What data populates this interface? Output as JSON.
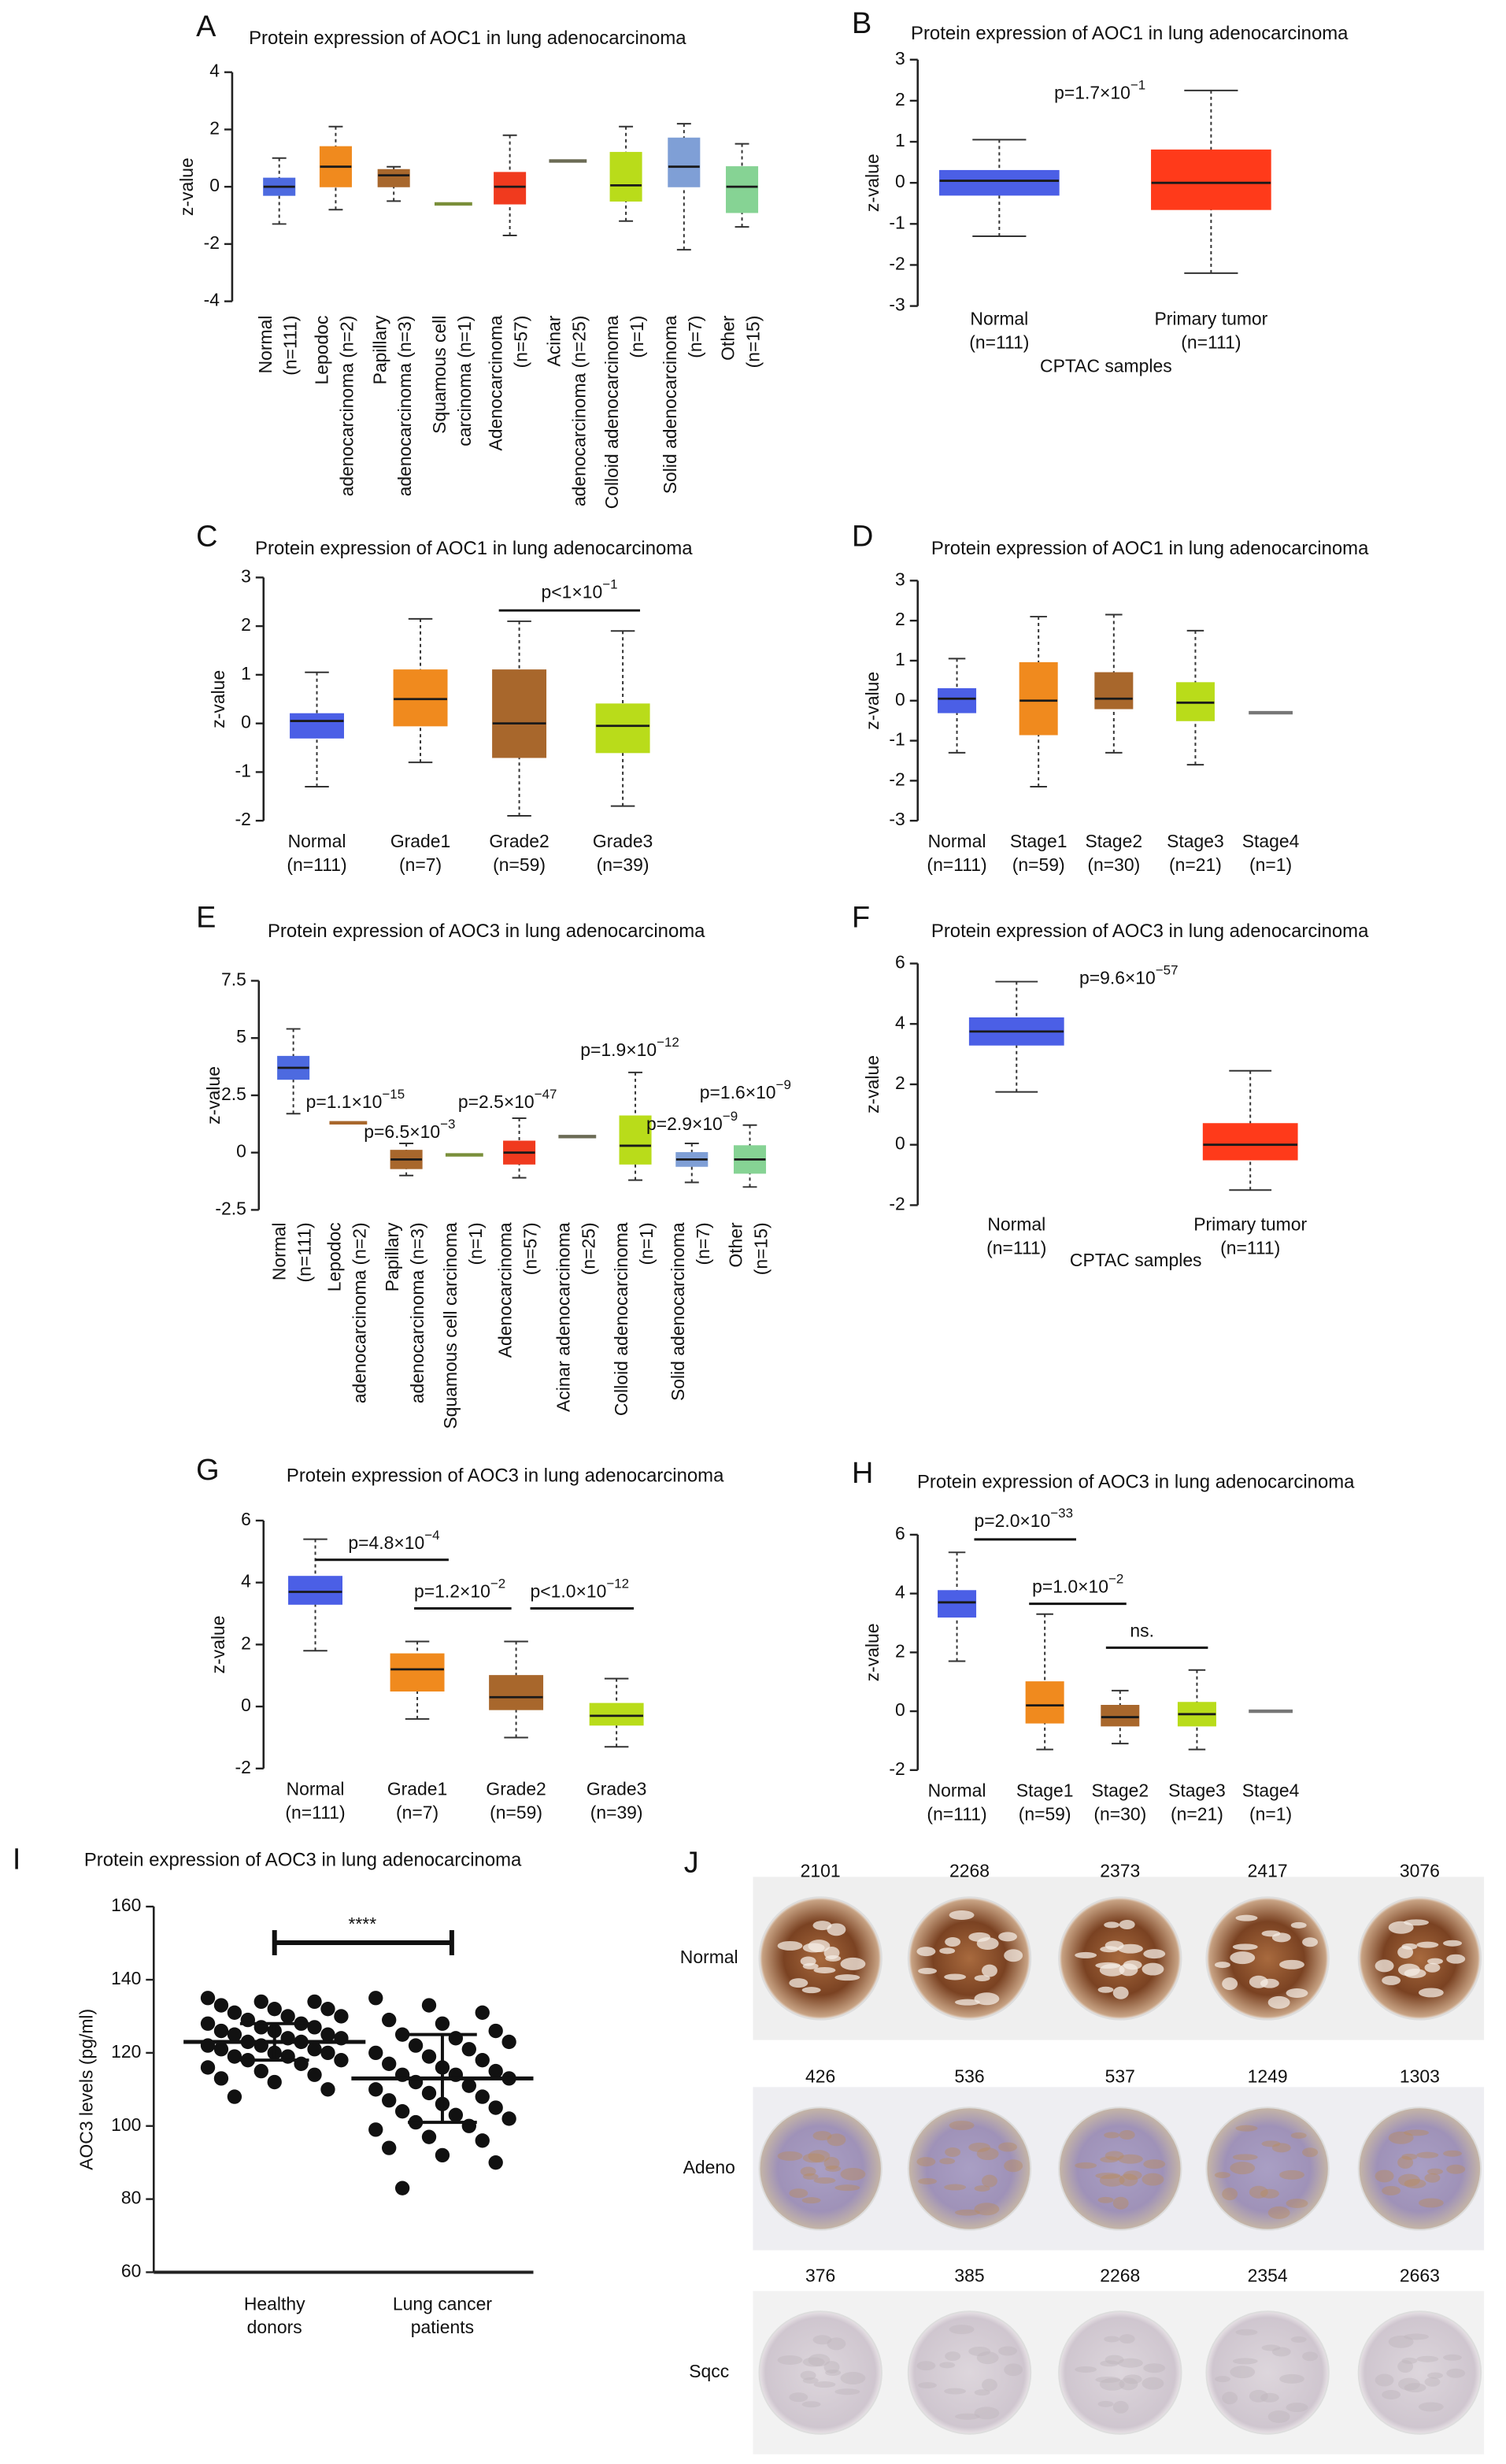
{
  "chart_data": [
    {
      "type": "box",
      "panel": "A",
      "title": "Protein expression of AOC1 in lung adenocarcinoma",
      "ylabel": "z-value",
      "ylim": [
        -4,
        4
      ],
      "yticks": [
        -4,
        -2,
        0,
        2,
        4
      ],
      "categories": [
        [
          "Normal",
          "(n=111)"
        ],
        [
          "Lepodoc",
          "adenocarcinoma (n=2)"
        ],
        [
          "Papillary",
          "adenocarcinoma (n=3)"
        ],
        [
          "Squamous cell",
          "carcinoma (n=1)"
        ],
        [
          "Adenocarcinoma",
          "(n=57)"
        ],
        [
          "Acinar",
          "adenocarcinoma (n=25)"
        ],
        [
          "Colloid adenocarcinoma",
          "(n=1)"
        ],
        [
          "Solid adenocarcinoma",
          "(n=7)"
        ],
        [
          "Other",
          "(n=15)"
        ]
      ],
      "colors": [
        "#4d6ae0",
        "#f08a1e",
        "#a8672c",
        "#7a8f3a",
        "#f03a1e",
        "#6b6b55",
        "#b9dc1a",
        "#7f9fd6",
        "#86d394"
      ],
      "boxes": [
        {
          "low": -1.3,
          "q1": -0.3,
          "median": 0,
          "q3": 0.3,
          "high": 1.0
        },
        {
          "low": -0.8,
          "q1": 0,
          "median": 0.7,
          "q3": 1.4,
          "high": 2.1
        },
        {
          "low": -0.5,
          "q1": 0,
          "median": 0.4,
          "q3": 0.6,
          "high": 0.7
        },
        {
          "median": -0.6
        },
        {
          "low": -1.7,
          "q1": -0.6,
          "median": 0,
          "q3": 0.5,
          "high": 1.8
        },
        {
          "median": 0.9
        },
        {
          "low": -1.2,
          "q1": -0.5,
          "median": 0.05,
          "q3": 1.2,
          "high": 2.1
        },
        {
          "low": -2.2,
          "q1": 0,
          "median": 0.7,
          "q3": 1.7,
          "high": 2.2
        },
        {
          "low": -1.4,
          "q1": -0.9,
          "median": 0,
          "q3": 0.7,
          "high": 1.5
        }
      ]
    },
    {
      "type": "box",
      "panel": "B",
      "title": "Protein expression of AOC1 in lung adenocarcinoma",
      "ylabel": "z-value",
      "xlabel": "CPTAC samples",
      "ylim": [
        -3,
        3
      ],
      "yticks": [
        -3,
        -2,
        -1,
        0,
        1,
        2,
        3
      ],
      "categories": [
        [
          "Normal",
          "(n=111)"
        ],
        [
          "Primary tumor",
          "(n=111)"
        ]
      ],
      "colors": [
        "#4b5fe6",
        "#ff3a1a"
      ],
      "boxes": [
        {
          "low": -1.3,
          "q1": -0.3,
          "median": 0.05,
          "q3": 0.3,
          "high": 1.05
        },
        {
          "low": -2.2,
          "q1": -0.65,
          "median": 0,
          "q3": 0.8,
          "high": 2.25
        }
      ],
      "annotations": [
        {
          "text": "p=1.7×10",
          "sup": "−1"
        }
      ]
    },
    {
      "type": "box",
      "panel": "C",
      "title": "Protein expression of AOC1 in lung adenocarcinoma",
      "ylabel": "z-value",
      "ylim": [
        -2,
        3
      ],
      "yticks": [
        -2,
        -1,
        0,
        1,
        2,
        3
      ],
      "categories": [
        [
          "Normal",
          "(n=111)"
        ],
        [
          "Grade1",
          "(n=7)"
        ],
        [
          "Grade2",
          "(n=59)"
        ],
        [
          "Grade3",
          "(n=39)"
        ]
      ],
      "colors": [
        "#4b5fe6",
        "#f08a1e",
        "#a8672c",
        "#b9dc1a"
      ],
      "boxes": [
        {
          "low": -1.3,
          "q1": -0.3,
          "median": 0.05,
          "q3": 0.2,
          "high": 1.05
        },
        {
          "low": -0.8,
          "q1": -0.05,
          "median": 0.5,
          "q3": 1.1,
          "high": 2.15
        },
        {
          "low": -1.9,
          "q1": -0.7,
          "median": 0,
          "q3": 1.1,
          "high": 2.1
        },
        {
          "low": -1.7,
          "q1": -0.6,
          "median": -0.05,
          "q3": 0.4,
          "high": 1.9
        }
      ],
      "annotations": [
        {
          "text": "p<1×10",
          "sup": "−1"
        }
      ]
    },
    {
      "type": "box",
      "panel": "D",
      "title": "Protein expression of AOC1 in lung adenocarcinoma",
      "ylabel": "z-value",
      "ylim": [
        -3,
        3
      ],
      "yticks": [
        -3,
        -2,
        -1,
        0,
        1,
        2,
        3
      ],
      "categories": [
        [
          "Normal",
          "(n=111)"
        ],
        [
          "Stage1",
          "(n=59)"
        ],
        [
          "Stage2",
          "(n=30)"
        ],
        [
          "Stage3",
          "(n=21)"
        ],
        [
          "Stage4",
          "(n=1)"
        ]
      ],
      "colors": [
        "#4b5fe6",
        "#f08a1e",
        "#a8672c",
        "#b9dc1a",
        "#777777"
      ],
      "boxes": [
        {
          "low": -1.3,
          "q1": -0.3,
          "median": 0.05,
          "q3": 0.3,
          "high": 1.05
        },
        {
          "low": -2.15,
          "q1": -0.85,
          "median": 0,
          "q3": 0.95,
          "high": 2.1
        },
        {
          "low": -1.3,
          "q1": -0.2,
          "median": 0.05,
          "q3": 0.7,
          "high": 2.15
        },
        {
          "low": -1.6,
          "q1": -0.5,
          "median": -0.05,
          "q3": 0.45,
          "high": 1.75
        },
        {
          "median": -0.3
        }
      ]
    },
    {
      "type": "box",
      "panel": "E",
      "title": "Protein expression of AOC3 in lung adenocarcinoma",
      "ylabel": "z-value",
      "ylim": [
        -2.5,
        7.5
      ],
      "yticks": [
        -2.5,
        0,
        2.5,
        5,
        7.5
      ],
      "categories": [
        [
          "Normal",
          "(n=111)"
        ],
        [
          "Lepodoc",
          "adenocarcinoma (n=2)"
        ],
        [
          "Papillary",
          "adenocarcinoma (n=3)"
        ],
        [
          "Squamous cell carcinoma",
          "(n=1)"
        ],
        [
          "Adenocarcinoma",
          "(n=57)"
        ],
        [
          "Acinar adenocarcinoma",
          "(n=25)"
        ],
        [
          "Colloid adenocarcinoma",
          "(n=1)"
        ],
        [
          "Solid adenocarcinoma",
          "(n=7)"
        ],
        [
          "Other",
          "(n=15)"
        ]
      ],
      "colors": [
        "#4d6ae0",
        "#a8672c",
        "#a8672c",
        "#7a8f3a",
        "#f03a1e",
        "#6b6b55",
        "#b9dc1a",
        "#7f9fd6",
        "#86d394"
      ],
      "boxes": [
        {
          "low": 1.7,
          "q1": 3.2,
          "median": 3.7,
          "q3": 4.2,
          "high": 5.4
        },
        {
          "median": 1.3
        },
        {
          "low": -1.0,
          "q1": -0.7,
          "median": -0.3,
          "q3": 0.1,
          "high": 0.4
        },
        {
          "median": -0.1
        },
        {
          "low": -1.1,
          "q1": -0.5,
          "median": 0,
          "q3": 0.5,
          "high": 1.5
        },
        {
          "median": 0.7
        },
        {
          "low": -1.2,
          "q1": -0.5,
          "median": 0.3,
          "q3": 1.6,
          "high": 3.5
        },
        {
          "low": -1.3,
          "q1": -0.6,
          "median": -0.3,
          "q3": 0,
          "high": 0.4
        },
        {
          "low": -1.5,
          "q1": -0.9,
          "median": -0.3,
          "q3": 0.3,
          "high": 1.2
        }
      ],
      "annotations": [
        {
          "text": "p=1.1×10",
          "sup": "−15"
        },
        {
          "text": "p=6.5×10",
          "sup": "−3"
        },
        {
          "text": "p=2.5×10",
          "sup": "−47"
        },
        {
          "text": "p=1.9×10",
          "sup": "−12"
        },
        {
          "text": "p=2.9×10",
          "sup": "−9"
        },
        {
          "text": "p=1.6×10",
          "sup": "−9"
        }
      ]
    },
    {
      "type": "box",
      "panel": "F",
      "title": "Protein expression of AOC3 in lung adenocarcinoma",
      "ylabel": "z-value",
      "xlabel": "CPTAC samples",
      "ylim": [
        -2,
        6
      ],
      "yticks": [
        -2,
        0,
        2,
        4,
        6
      ],
      "categories": [
        [
          "Normal",
          "(n=111)"
        ],
        [
          "Primary tumor",
          "(n=111)"
        ]
      ],
      "colors": [
        "#4b5fe6",
        "#ff3a1a"
      ],
      "boxes": [
        {
          "low": 1.75,
          "q1": 3.3,
          "median": 3.75,
          "q3": 4.2,
          "high": 5.4
        },
        {
          "low": -1.5,
          "q1": -0.5,
          "median": 0,
          "q3": 0.7,
          "high": 2.45
        }
      ],
      "annotations": [
        {
          "text": "p=9.6×10",
          "sup": "−57"
        }
      ]
    },
    {
      "type": "box",
      "panel": "G",
      "title": "Protein expression of AOC3 in lung adenocarcinoma",
      "ylabel": "z-value",
      "ylim": [
        -2,
        6
      ],
      "yticks": [
        -2,
        0,
        2,
        4,
        6
      ],
      "categories": [
        [
          "Normal",
          "(n=111)"
        ],
        [
          "Grade1",
          "(n=7)"
        ],
        [
          "Grade2",
          "(n=59)"
        ],
        [
          "Grade3",
          "(n=39)"
        ]
      ],
      "colors": [
        "#4b5fe6",
        "#f08a1e",
        "#a8672c",
        "#b9dc1a"
      ],
      "boxes": [
        {
          "low": 1.8,
          "q1": 3.3,
          "median": 3.7,
          "q3": 4.2,
          "high": 5.4
        },
        {
          "low": -0.4,
          "q1": 0.5,
          "median": 1.2,
          "q3": 1.7,
          "high": 2.1
        },
        {
          "low": -1.0,
          "q1": -0.1,
          "median": 0.3,
          "q3": 1.0,
          "high": 2.1
        },
        {
          "low": -1.3,
          "q1": -0.6,
          "median": -0.3,
          "q3": 0.1,
          "high": 0.9
        }
      ],
      "annotations": [
        {
          "text": "p=4.8×10",
          "sup": "−4"
        },
        {
          "text": "p=1.2×10",
          "sup": "−2"
        },
        {
          "text": "p<1.0×10",
          "sup": "−12"
        }
      ]
    },
    {
      "type": "box",
      "panel": "H",
      "title": "Protein expression of AOC3 in lung adenocarcinoma",
      "ylabel": "z-value",
      "ylim": [
        -2,
        6
      ],
      "yticks": [
        -2,
        0,
        2,
        4,
        6
      ],
      "categories": [
        [
          "Normal",
          "(n=111)"
        ],
        [
          "Stage1",
          "(n=59)"
        ],
        [
          "Stage2",
          "(n=30)"
        ],
        [
          "Stage3",
          "(n=21)"
        ],
        [
          "Stage4",
          "(n=1)"
        ]
      ],
      "colors": [
        "#4b5fe6",
        "#f08a1e",
        "#a8672c",
        "#b9dc1a",
        "#777777"
      ],
      "boxes": [
        {
          "low": 1.7,
          "q1": 3.2,
          "median": 3.7,
          "q3": 4.1,
          "high": 5.4
        },
        {
          "low": -1.3,
          "q1": -0.4,
          "median": 0.2,
          "q3": 1.0,
          "high": 3.3
        },
        {
          "low": -1.1,
          "q1": -0.5,
          "median": -0.2,
          "q3": 0.2,
          "high": 0.7
        },
        {
          "low": -1.3,
          "q1": -0.5,
          "median": -0.1,
          "q3": 0.3,
          "high": 1.4
        },
        {
          "median": 0
        }
      ],
      "annotations": [
        {
          "text": "p=2.0×10",
          "sup": "−33"
        },
        {
          "text": "p=1.0×10",
          "sup": "−2"
        },
        {
          "text": "ns."
        }
      ]
    },
    {
      "type": "dot",
      "panel": "I",
      "title": "Protein expression of AOC3 in lung adenocarcinoma",
      "ylabel": "AOC3 levels (pg/ml)",
      "ylim": [
        60,
        160
      ],
      "yticks": [
        60,
        80,
        100,
        120,
        140,
        160
      ],
      "categories": [
        [
          "Healthy",
          "donors"
        ],
        [
          "Lung cancer",
          "patients"
        ]
      ],
      "color": "#111111",
      "values": [
        [
          135,
          134,
          134,
          133,
          132,
          132,
          131,
          130,
          130,
          129,
          128,
          128,
          127,
          127,
          126,
          126,
          125,
          125,
          124,
          124,
          123,
          123,
          122,
          122,
          121,
          121,
          120,
          120,
          119,
          119,
          118,
          118,
          117,
          116,
          115,
          114,
          113,
          112,
          110,
          108
        ],
        [
          135,
          133,
          131,
          129,
          128,
          126,
          125,
          124,
          123,
          122,
          121,
          120,
          119,
          118,
          117,
          116,
          115,
          114,
          114,
          113,
          112,
          111,
          110,
          109,
          108,
          107,
          106,
          105,
          104,
          103,
          102,
          101,
          100,
          99,
          97,
          96,
          94,
          92,
          90,
          83
        ]
      ],
      "mean": [
        123,
        113
      ],
      "sd": [
        5,
        12
      ],
      "annotations": [
        {
          "text": "****"
        }
      ]
    }
  ],
  "tissue_panel": {
    "panel": "J",
    "rows": [
      {
        "label": "Normal",
        "ids": [
          "2101",
          "2268",
          "2373",
          "2417",
          "3076"
        ]
      },
      {
        "label": "Adeno",
        "ids": [
          "426",
          "536",
          "537",
          "1249",
          "1303"
        ]
      },
      {
        "label": "Sqcc",
        "ids": [
          "376",
          "385",
          "2268",
          "2354",
          "2663"
        ]
      }
    ]
  }
}
